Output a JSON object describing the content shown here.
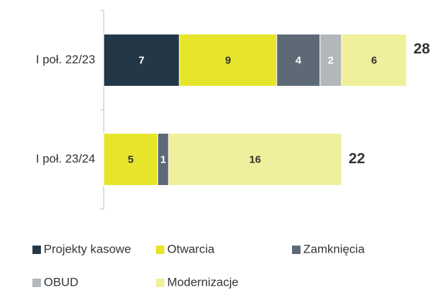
{
  "chart_data": {
    "type": "stacked-barh",
    "categories": [
      "I poł. 22/23",
      "I poł. 23/24"
    ],
    "series": [
      {
        "name": "Projekty kasowe",
        "color": "#243746",
        "values": [
          7,
          null
        ]
      },
      {
        "name": "Otwarcia",
        "color": "#e6e52b",
        "values": [
          9,
          5
        ]
      },
      {
        "name": "Zamknięcia",
        "color": "#5d6a75",
        "values": [
          4,
          1
        ]
      },
      {
        "name": "OBUD",
        "color": "#b2b7bc",
        "values": [
          2,
          null
        ]
      },
      {
        "name": "Modernizacje",
        "color": "#f0ef9b",
        "values": [
          6,
          16
        ]
      }
    ],
    "totals": [
      28,
      22
    ],
    "legend": "bottom"
  }
}
